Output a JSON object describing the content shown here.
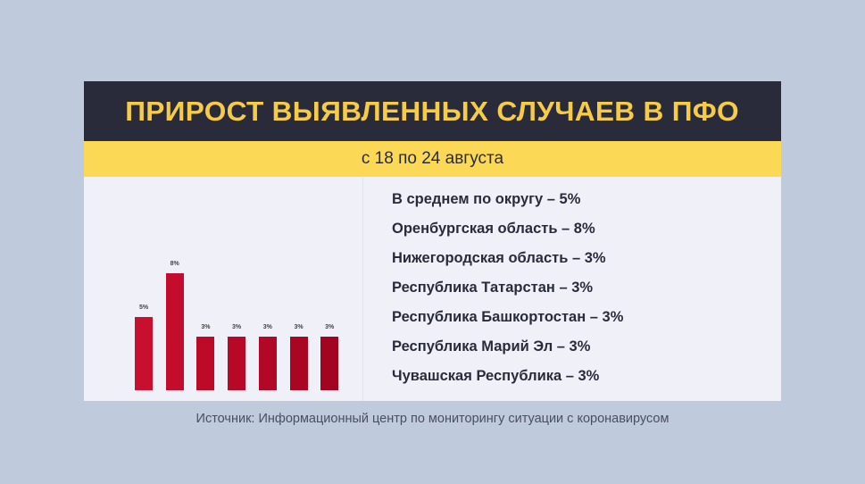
{
  "header": {
    "title": "ПРИРОСТ ВЫЯВЛЕННЫХ СЛУЧАЕВ В ПФО",
    "subtitle": "с 18 по 24 августа"
  },
  "colors": {
    "background": "#bfcadc",
    "card": "#eff0f8",
    "title_band": "#2a2b3a",
    "title_text": "#f6cc47",
    "subtitle_band": "#fbd957",
    "bar_colors": [
      "#c8102e",
      "#c40d2c",
      "#bc0a28",
      "#b80828",
      "#b20726",
      "#aa0623",
      "#a30520"
    ]
  },
  "legend": {
    "items": [
      "В среднем по округу – 5%",
      "Оренбургская область – 8%",
      "Нижегородская область – 3%",
      "Республика Татарстан – 3%",
      "Республика Башкортостан – 3%",
      "Республика Марий Эл – 3%",
      "Чувашская Республика – 3%"
    ]
  },
  "source": "Источник: Информационный центр по мониторингу ситуации с коронавирусом",
  "chart_data": {
    "type": "bar",
    "title": "ПРИРОСТ ВЫЯВЛЕННЫХ СЛУЧАЕВ В ПФО",
    "subtitle": "с 18 по 24 августа",
    "categories": [
      "В среднем по округу",
      "Оренбургская область",
      "Нижегородская область",
      "Республика Татарстан",
      "Республика Башкортостан",
      "Республика Марий Эл",
      "Чувашская Республика"
    ],
    "values": [
      5,
      8,
      3,
      3,
      3,
      3,
      3
    ],
    "value_labels": [
      "5%",
      "8%",
      "3%",
      "3%",
      "3%",
      "3%",
      "3%"
    ],
    "unit": "%",
    "xlabel": "",
    "ylabel": "",
    "ylim": [
      0,
      8
    ],
    "grid": false,
    "legend_position": "right"
  }
}
